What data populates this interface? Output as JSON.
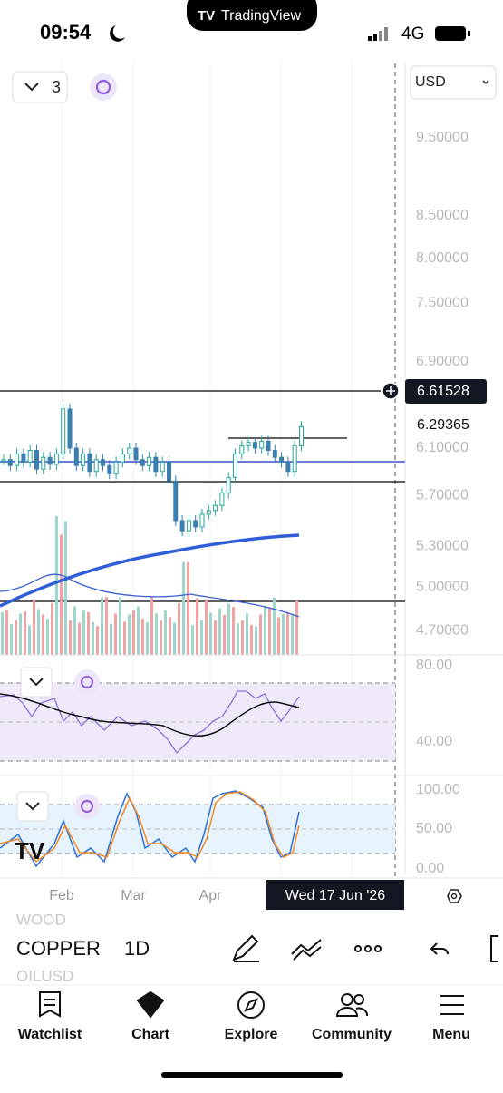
{
  "status_bar": {
    "time": "09:54",
    "network": "4G"
  },
  "app_pill": "TradingView",
  "chart_controls": {
    "layout_count": "3",
    "currency": "USD"
  },
  "price_axis": {
    "ticks": [
      "9.50000",
      "8.50000",
      "8.00000",
      "7.50000",
      "6.90000",
      "6.10000",
      "5.70000",
      "5.30000",
      "5.00000",
      "4.70000"
    ],
    "crosshair_price": "6.61528",
    "last_price": "6.29365"
  },
  "price_series": {
    "closes": [
      6.0,
      5.95,
      6.05,
      5.98,
      6.08,
      5.92,
      6.02,
      5.96,
      6.05,
      6.45,
      6.1,
      5.95,
      6.05,
      5.9,
      6.0,
      5.95,
      5.88,
      5.98,
      6.05,
      6.1,
      6.0,
      5.95,
      6.02,
      5.9,
      5.98,
      5.82,
      5.5,
      5.42,
      5.5,
      5.45,
      5.55,
      5.58,
      5.62,
      5.72,
      5.85,
      6.05,
      6.12,
      6.15,
      6.1,
      6.16,
      6.08,
      6.02,
      5.98,
      5.9,
      6.12,
      6.29
    ]
  },
  "indicators": {
    "rsi_ticks": [
      "80.00",
      "40.00"
    ],
    "stoch_ticks": [
      "100.00",
      "50.00",
      "0.00"
    ]
  },
  "time_axis": {
    "months": [
      "Feb",
      "Mar",
      "Apr"
    ],
    "crosshair_date": "Wed 17 Jun '26"
  },
  "symbol_bar": {
    "prev_symbol": "WOOD",
    "symbol": "COPPER",
    "next_symbol": "OILUSD",
    "interval": "1D"
  },
  "tab_bar": [
    "Watchlist",
    "Chart",
    "Explore",
    "Community",
    "Menu"
  ]
}
